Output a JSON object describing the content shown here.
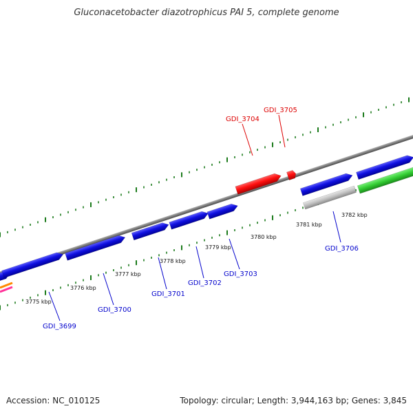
{
  "title": "Gluconacetobacter diazotrophicus PAI 5, complete genome",
  "footer": {
    "accession": "Accession: NC_010125",
    "summary": "Topology: circular; Length: 3,944,163 bp; Genes: 3,845"
  },
  "colors": {
    "backbone": "#808080",
    "tick": "#1a7a1a",
    "forward_gene": "#1010e0",
    "highlight_gene": "#ff1010",
    "neutral_gene": "#c0c0c0",
    "rna_gene": "#33cc33",
    "label_blue": "#0000cc",
    "label_red": "#dd0000"
  },
  "scale_labels": [
    {
      "id": "k3775",
      "text": "3775 kbp"
    },
    {
      "id": "k3776",
      "text": "3776 kbp"
    },
    {
      "id": "k3777",
      "text": "3777 kbp"
    },
    {
      "id": "k3778",
      "text": "3778 kbp"
    },
    {
      "id": "k3779",
      "text": "3779 kbp"
    },
    {
      "id": "k3780",
      "text": "3780 kbp"
    },
    {
      "id": "k3781",
      "text": "3781 kbp"
    },
    {
      "id": "k3782",
      "text": "3782 kbp"
    }
  ],
  "gene_labels": [
    {
      "id": "gdi3699",
      "text": "GDI_3699",
      "color": "blue"
    },
    {
      "id": "gdi3700",
      "text": "GDI_3700",
      "color": "blue"
    },
    {
      "id": "gdi3701",
      "text": "GDI_3701",
      "color": "blue"
    },
    {
      "id": "gdi3702",
      "text": "GDI_3702",
      "color": "blue"
    },
    {
      "id": "gdi3703",
      "text": "GDI_3703",
      "color": "blue"
    },
    {
      "id": "gdi3704",
      "text": "GDI_3704",
      "color": "red"
    },
    {
      "id": "gdi3705",
      "text": "GDI_3705",
      "color": "red"
    },
    {
      "id": "gdi3706",
      "text": "GDI_3706",
      "color": "blue"
    }
  ]
}
